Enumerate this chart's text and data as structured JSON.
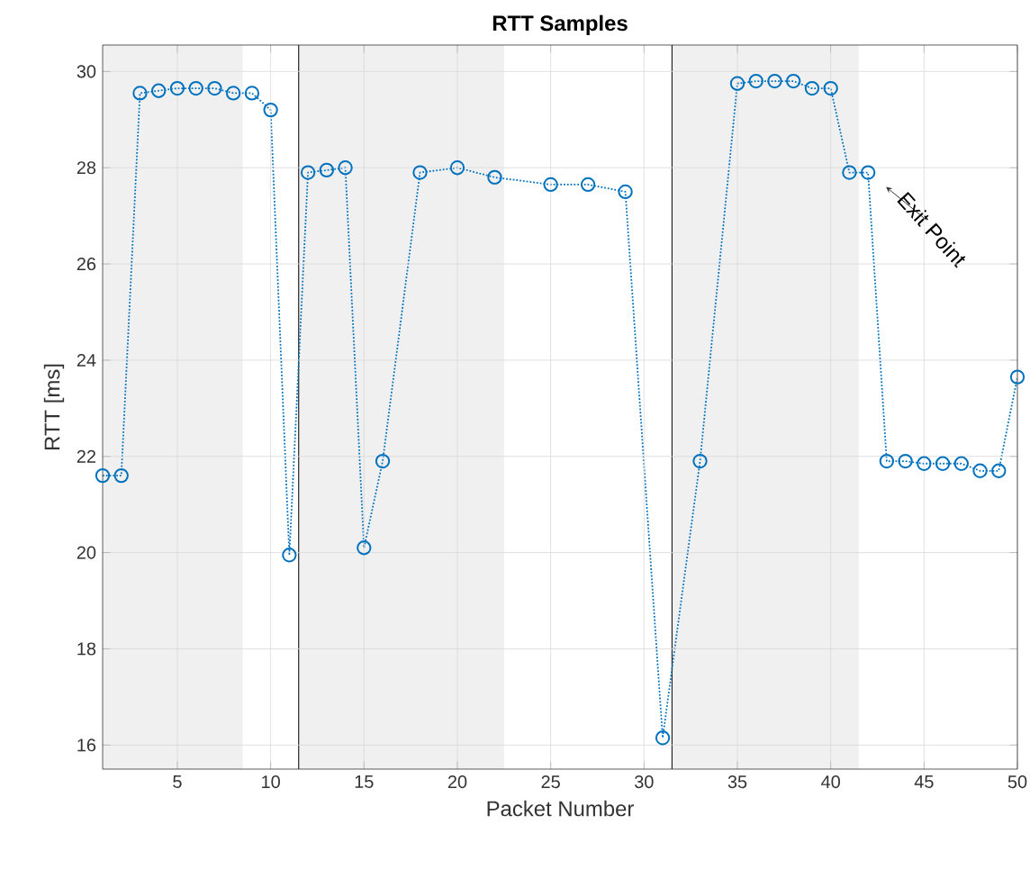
{
  "chart_data": {
    "type": "line",
    "title": "RTT Samples",
    "xlabel": "Packet Number",
    "ylabel": "RTT [ms]",
    "series": [
      {
        "color": "#0072bd",
        "marker": "circle",
        "line_style": "dotted",
        "x": [
          1,
          2,
          3,
          4,
          5,
          6,
          7,
          8,
          9,
          10,
          11,
          12,
          13,
          14,
          15,
          16,
          18,
          20,
          22,
          25,
          27,
          29,
          31,
          33,
          35,
          36,
          37,
          38,
          39,
          40,
          41,
          42,
          43,
          44,
          45,
          46,
          47,
          48,
          49,
          50
        ],
        "values": [
          21.6,
          21.6,
          29.55,
          29.6,
          29.65,
          29.65,
          29.65,
          29.55,
          29.55,
          29.2,
          19.95,
          27.9,
          27.95,
          28.0,
          20.1,
          21.9,
          27.9,
          28.0,
          27.8,
          27.65,
          27.65,
          27.5,
          16.15,
          21.9,
          29.75,
          29.8,
          29.8,
          29.8,
          29.65,
          29.65,
          27.9,
          27.9,
          21.9,
          21.9,
          21.85,
          21.85,
          21.85,
          21.7,
          21.7,
          23.65
        ]
      }
    ],
    "xlim": [
      1,
      50
    ],
    "ylim": [
      15.5,
      30.55
    ],
    "xticks": [
      5,
      10,
      15,
      20,
      25,
      30,
      35,
      40,
      45,
      50
    ],
    "yticks": [
      16,
      18,
      20,
      22,
      24,
      26,
      28,
      30
    ],
    "grid": true,
    "bands": [
      {
        "axis": "x",
        "from": 1,
        "to": 8.5,
        "color": "#f0f0f0"
      },
      {
        "axis": "x",
        "from": 11.5,
        "to": 22.5,
        "color": "#f0f0f0"
      },
      {
        "axis": "x",
        "from": 31.5,
        "to": 41.5,
        "color": "#f0f0f0"
      }
    ],
    "ref_lines": [
      {
        "axis": "x",
        "value": 11.5,
        "color": "#262626"
      },
      {
        "axis": "x",
        "value": 31.5,
        "color": "#262626"
      }
    ],
    "annotations": [
      {
        "text": "Exit Point",
        "x": 42,
        "y": 27.9
      }
    ]
  }
}
